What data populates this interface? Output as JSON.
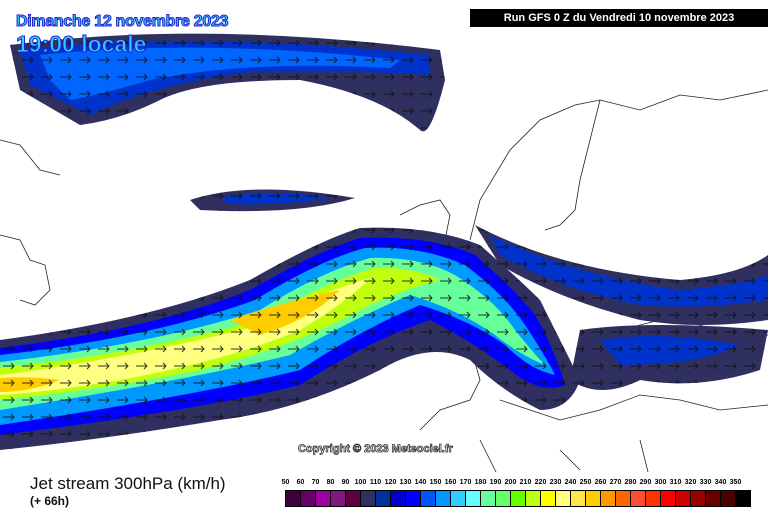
{
  "header": {
    "date": "Dimanche 12 novembre 2023",
    "time": "19:00 locale",
    "run": "Run GFS 0 Z du Vendredi 10 novembre 2023"
  },
  "copyright": "Copyright © 2023 Meteociel.fr",
  "footer": {
    "title": "Jet stream 300hPa (km/h)",
    "lead": "(+ 66h)"
  },
  "legend": {
    "labels": [
      "50",
      "60",
      "70",
      "80",
      "90",
      "100",
      "110",
      "120",
      "130",
      "140",
      "150",
      "160",
      "170",
      "180",
      "190",
      "200",
      "210",
      "220",
      "230",
      "240",
      "250",
      "260",
      "270",
      "280",
      "290",
      "300",
      "310",
      "320",
      "330",
      "340",
      "350"
    ],
    "colors": [
      "#400040",
      "#660066",
      "#a000a0",
      "#801880",
      "#600040",
      "#303060",
      "#003399",
      "#0000cc",
      "#0000ff",
      "#0055ff",
      "#0099ff",
      "#33ccff",
      "#66ffff",
      "#66ff99",
      "#66ff66",
      "#66ff00",
      "#c0ff10",
      "#ffff00",
      "#ffff80",
      "#ffe64d",
      "#ffcc00",
      "#ff9900",
      "#ff6600",
      "#ff4d33",
      "#ff3300",
      "#ff0000",
      "#cc0000",
      "#990000",
      "#660000",
      "#4d0000",
      "#000000"
    ]
  }
}
